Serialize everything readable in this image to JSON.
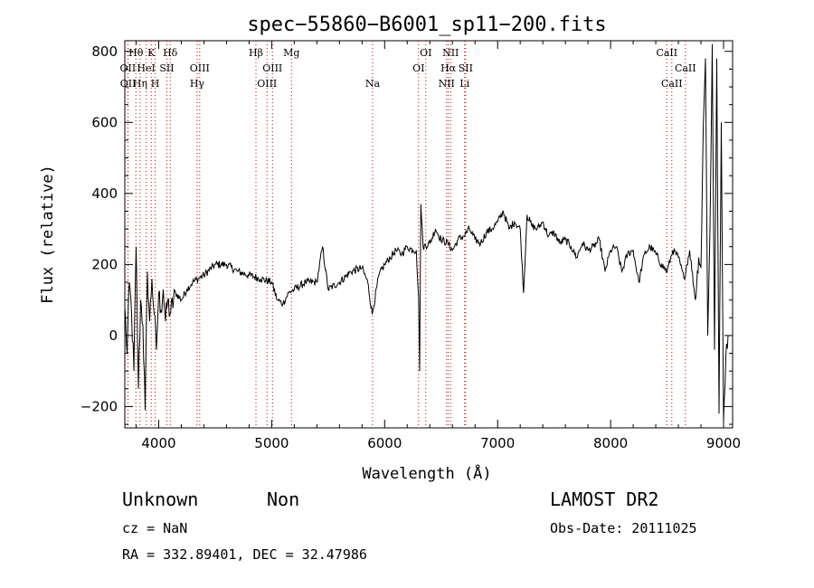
{
  "chart_data": {
    "type": "line",
    "title": "spec−55860−B6001_sp11−200.fits",
    "xlabel": "Wavelength (Å)",
    "ylabel": "Flux (relative)",
    "xlim": [
      3700,
      9080
    ],
    "ylim": [
      -260,
      830
    ],
    "xticks": [
      4000,
      5000,
      6000,
      7000,
      8000,
      9000
    ],
    "yticks": [
      -200,
      0,
      200,
      400,
      600,
      800
    ],
    "grid": false,
    "line_color": "#000000",
    "marker_color": "#cc0000",
    "series": [
      {
        "x": [
          3700,
          3720,
          3740,
          3760,
          3780,
          3800,
          3820,
          3840,
          3860,
          3880,
          3900,
          3920,
          3940,
          3960,
          3980,
          4000,
          4020,
          4040,
          4060,
          4080,
          4100,
          4150,
          4200,
          4250,
          4300,
          4350,
          4400,
          4500,
          4600,
          4700,
          4800,
          4900,
          5000,
          5050,
          5100,
          5150,
          5200,
          5300,
          5400,
          5450,
          5500,
          5600,
          5700,
          5800,
          5850,
          5890,
          5950,
          6000,
          6050,
          6100,
          6150,
          6200,
          6250,
          6280,
          6300,
          6310,
          6320,
          6340,
          6400,
          6450,
          6500,
          6560,
          6600,
          6650,
          6700,
          6750,
          6800,
          6850,
          6900,
          6950,
          7000,
          7050,
          7100,
          7150,
          7200,
          7230,
          7260,
          7300,
          7350,
          7400,
          7450,
          7500,
          7550,
          7600,
          7650,
          7700,
          7750,
          7800,
          7850,
          7900,
          7950,
          8000,
          8050,
          8100,
          8150,
          8200,
          8250,
          8300,
          8350,
          8400,
          8450,
          8500,
          8550,
          8600,
          8650,
          8700,
          8750,
          8780,
          8800,
          8820,
          8840,
          8860,
          8880,
          8900,
          8920,
          8940,
          8960,
          8980,
          9000,
          9020,
          9040
        ],
        "y": [
          80,
          -50,
          150,
          60,
          -100,
          250,
          -150,
          100,
          30,
          -210,
          180,
          40,
          160,
          60,
          -40,
          120,
          70,
          130,
          40,
          100,
          60,
          120,
          100,
          130,
          150,
          160,
          170,
          200,
          200,
          180,
          170,
          160,
          150,
          100,
          90,
          120,
          130,
          150,
          150,
          250,
          130,
          150,
          180,
          190,
          150,
          60,
          170,
          200,
          220,
          240,
          230,
          250,
          240,
          240,
          110,
          -100,
          370,
          250,
          260,
          300,
          270,
          260,
          240,
          270,
          280,
          300,
          270,
          260,
          290,
          300,
          320,
          350,
          300,
          320,
          300,
          120,
          340,
          310,
          300,
          320,
          280,
          290,
          260,
          270,
          250,
          220,
          260,
          240,
          250,
          270,
          180,
          240,
          250,
          180,
          230,
          240,
          150,
          230,
          250,
          230,
          200,
          180,
          240,
          220,
          160,
          240,
          100,
          220,
          190,
          580,
          780,
          0,
          300,
          820,
          -40,
          780,
          -220,
          600,
          -240,
          -60,
          0
        ]
      }
    ],
    "annotations": [
      {
        "label": "Hθ",
        "x": 3798,
        "row": 1
      },
      {
        "label": "K",
        "x": 3934,
        "row": 1
      },
      {
        "label": "Hδ",
        "x": 4102,
        "row": 1
      },
      {
        "label": "OII",
        "x": 3727,
        "row": 2
      },
      {
        "label": "HeI",
        "x": 3889,
        "row": 2
      },
      {
        "label": "SII",
        "x": 4072,
        "row": 2
      },
      {
        "label": "OIII",
        "x": 4363,
        "row": 2
      },
      {
        "label": "OII",
        "x": 3729,
        "row": 3
      },
      {
        "label": "Hη",
        "x": 3835,
        "row": 3
      },
      {
        "label": "H",
        "x": 3969,
        "row": 3
      },
      {
        "label": "Hγ",
        "x": 4340,
        "row": 3
      },
      {
        "label": "Hβ",
        "x": 4861,
        "row": 1
      },
      {
        "label": "Mg",
        "x": 5175,
        "row": 1
      },
      {
        "label": "OIII",
        "x": 5007,
        "row": 2
      },
      {
        "label": "OIII",
        "x": 4959,
        "row": 3
      },
      {
        "label": "Na",
        "x": 5893,
        "row": 3
      },
      {
        "label": "OI",
        "x": 6364,
        "row": 1
      },
      {
        "label": "NII",
        "x": 6584,
        "row": 1
      },
      {
        "label": "OI",
        "x": 6300,
        "row": 2
      },
      {
        "label": "Hα",
        "x": 6563,
        "row": 2
      },
      {
        "label": "SII",
        "x": 6717,
        "row": 2
      },
      {
        "label": "NII",
        "x": 6548,
        "row": 3
      },
      {
        "label": "Li",
        "x": 6708,
        "row": 3
      },
      {
        "label": "CaII",
        "x": 8498,
        "row": 1
      },
      {
        "label": "CaII",
        "x": 8662,
        "row": 2
      },
      {
        "label": "CaII",
        "x": 8542,
        "row": 3
      }
    ],
    "line_markers_x": [
      3727,
      3729,
      3798,
      3835,
      3889,
      3934,
      3969,
      4072,
      4102,
      4340,
      4363,
      4861,
      4959,
      5007,
      5175,
      5893,
      6300,
      6364,
      6548,
      6563,
      6584,
      6708,
      6717,
      8498,
      8542,
      8662
    ]
  },
  "info": {
    "class": "Unknown",
    "subclass": "Non",
    "cz": "cz = NaN",
    "coords": "RA = 332.89401, DEC =  32.47986",
    "survey": "LAMOST DR2",
    "obs_date": "Obs-Date: 20111025"
  }
}
